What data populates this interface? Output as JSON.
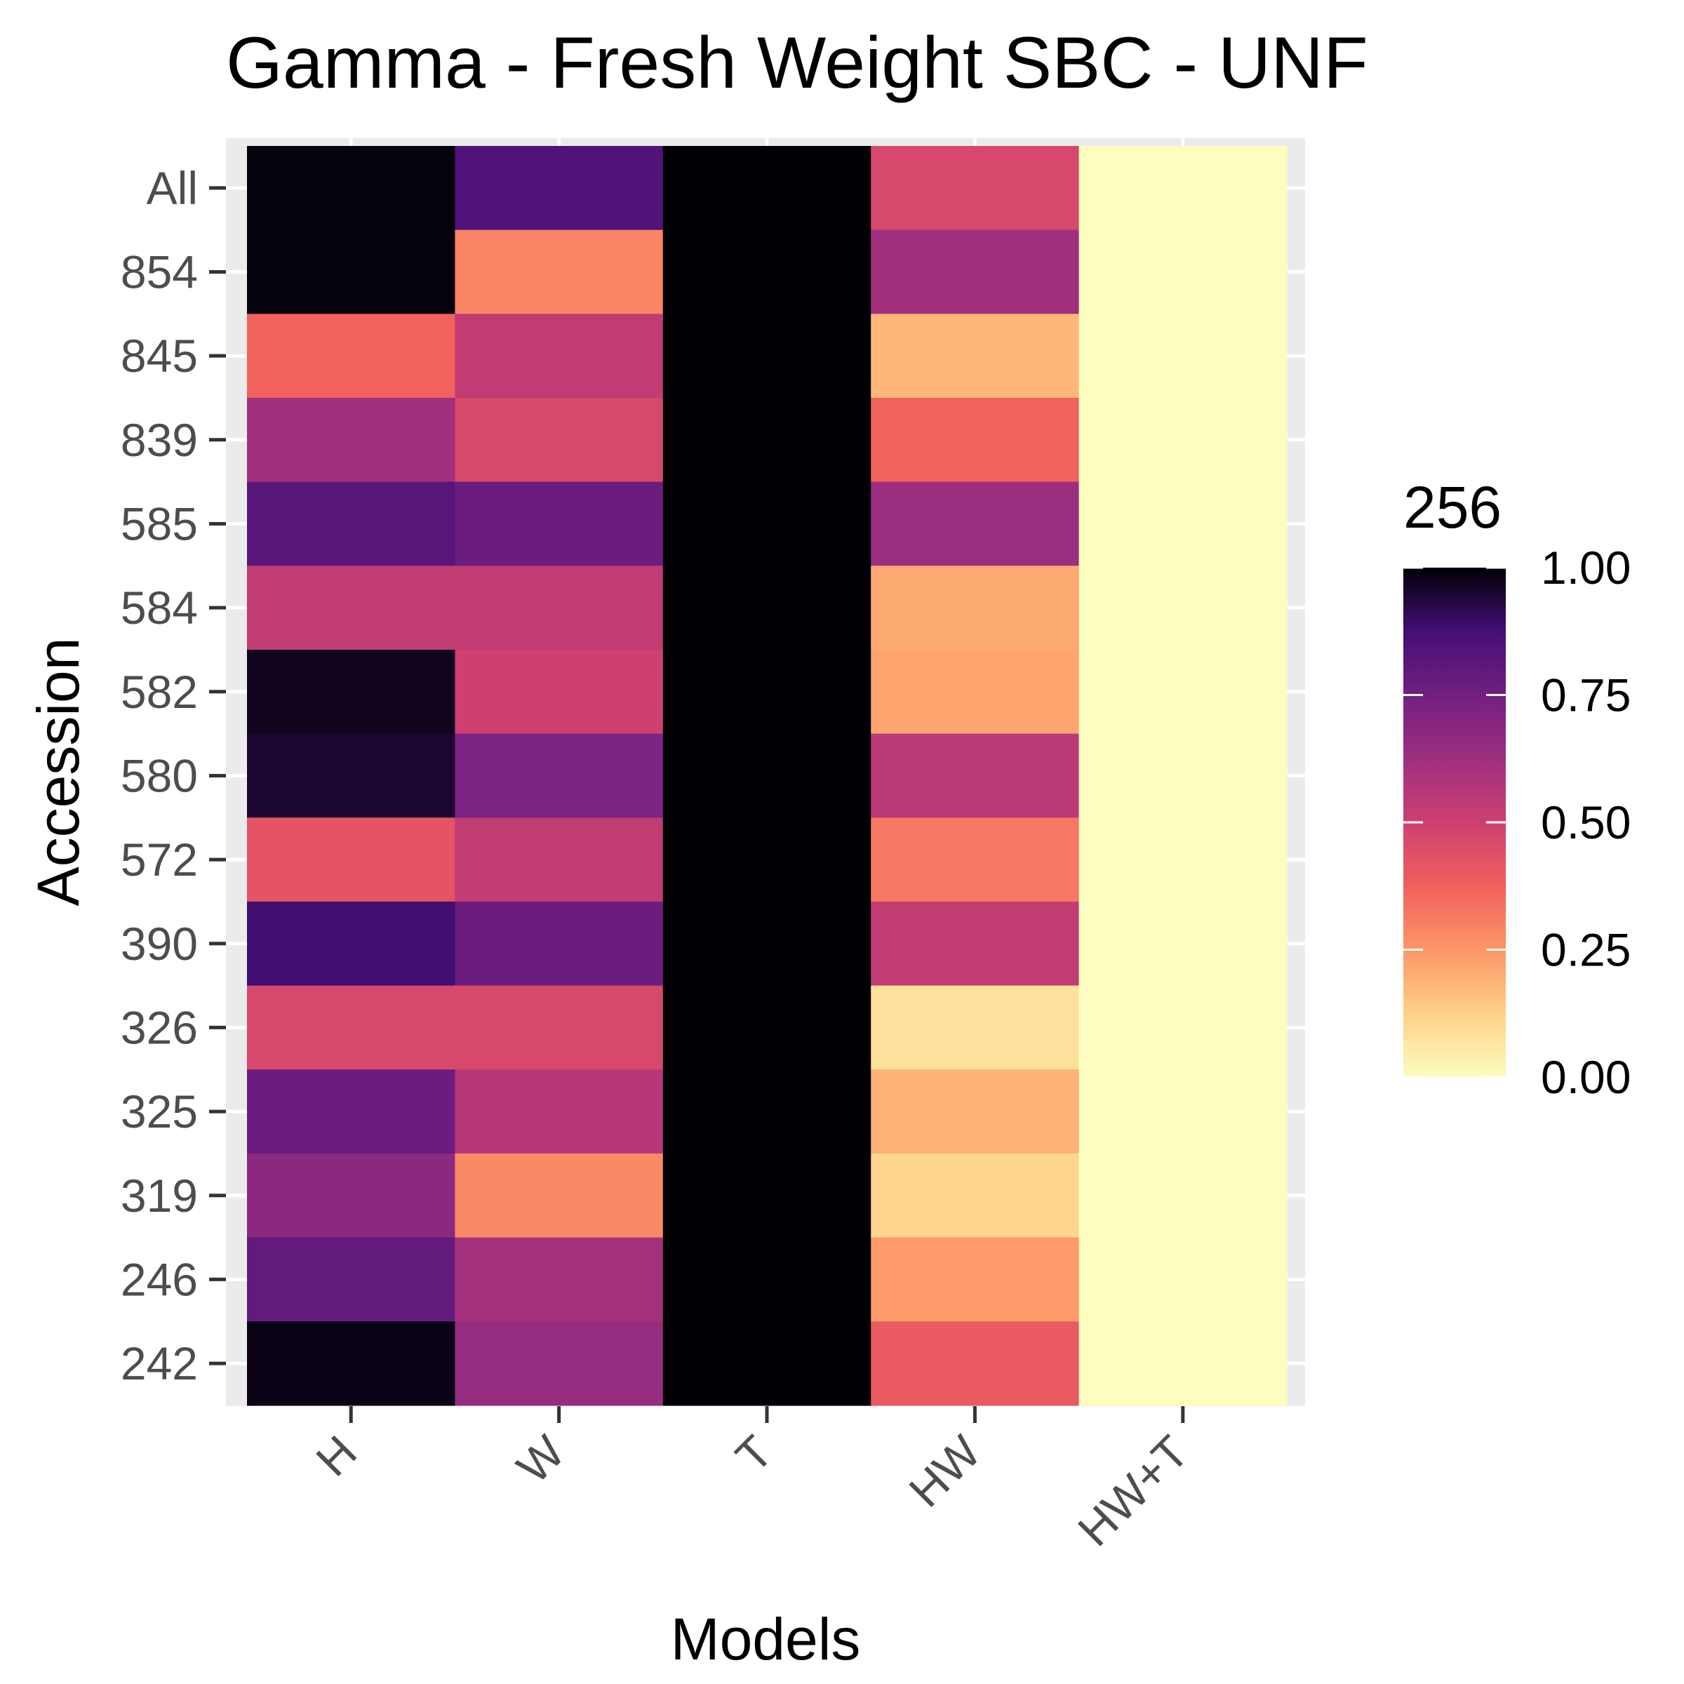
{
  "chart_data": {
    "type": "heatmap",
    "title": "Gamma - Fresh Weight SBC - UNF",
    "xlabel": "Models",
    "ylabel": "Accession",
    "x_categories": [
      "H",
      "W",
      "T",
      "HW",
      "HW+T"
    ],
    "y_categories": [
      "All",
      "854",
      "845",
      "839",
      "585",
      "584",
      "582",
      "580",
      "572",
      "390",
      "326",
      "325",
      "319",
      "246",
      "242"
    ],
    "values": [
      [
        0.99,
        0.84,
        1.0,
        0.47,
        0.0
      ],
      [
        0.99,
        0.29,
        1.0,
        0.62,
        0.0
      ],
      [
        0.37,
        0.53,
        1.0,
        0.18,
        0.0
      ],
      [
        0.62,
        0.47,
        1.0,
        0.37,
        0.0
      ],
      [
        0.82,
        0.77,
        1.0,
        0.63,
        0.0
      ],
      [
        0.53,
        0.53,
        1.0,
        0.21,
        0.0
      ],
      [
        0.97,
        0.5,
        1.0,
        0.22,
        0.0
      ],
      [
        0.95,
        0.72,
        1.0,
        0.55,
        0.0
      ],
      [
        0.42,
        0.53,
        1.0,
        0.32,
        0.0
      ],
      [
        0.88,
        0.77,
        1.0,
        0.53,
        0.0
      ],
      [
        0.47,
        0.47,
        1.0,
        0.08,
        0.0
      ],
      [
        0.77,
        0.56,
        1.0,
        0.19,
        0.0
      ],
      [
        0.68,
        0.28,
        1.0,
        0.11,
        0.0
      ],
      [
        0.79,
        0.61,
        1.0,
        0.24,
        0.0
      ],
      [
        0.98,
        0.65,
        1.0,
        0.4,
        0.0
      ]
    ],
    "color_scale": {
      "name": "magma",
      "range": [
        0,
        1
      ],
      "low_color": "#fcfdbf",
      "high_color": "#000004"
    },
    "legend": {
      "title": "256",
      "position": "right",
      "ticks": [
        "0.00",
        "0.25",
        "0.50",
        "0.75",
        "1.00"
      ]
    },
    "panel_background": "#ebebeb",
    "grid": true
  }
}
